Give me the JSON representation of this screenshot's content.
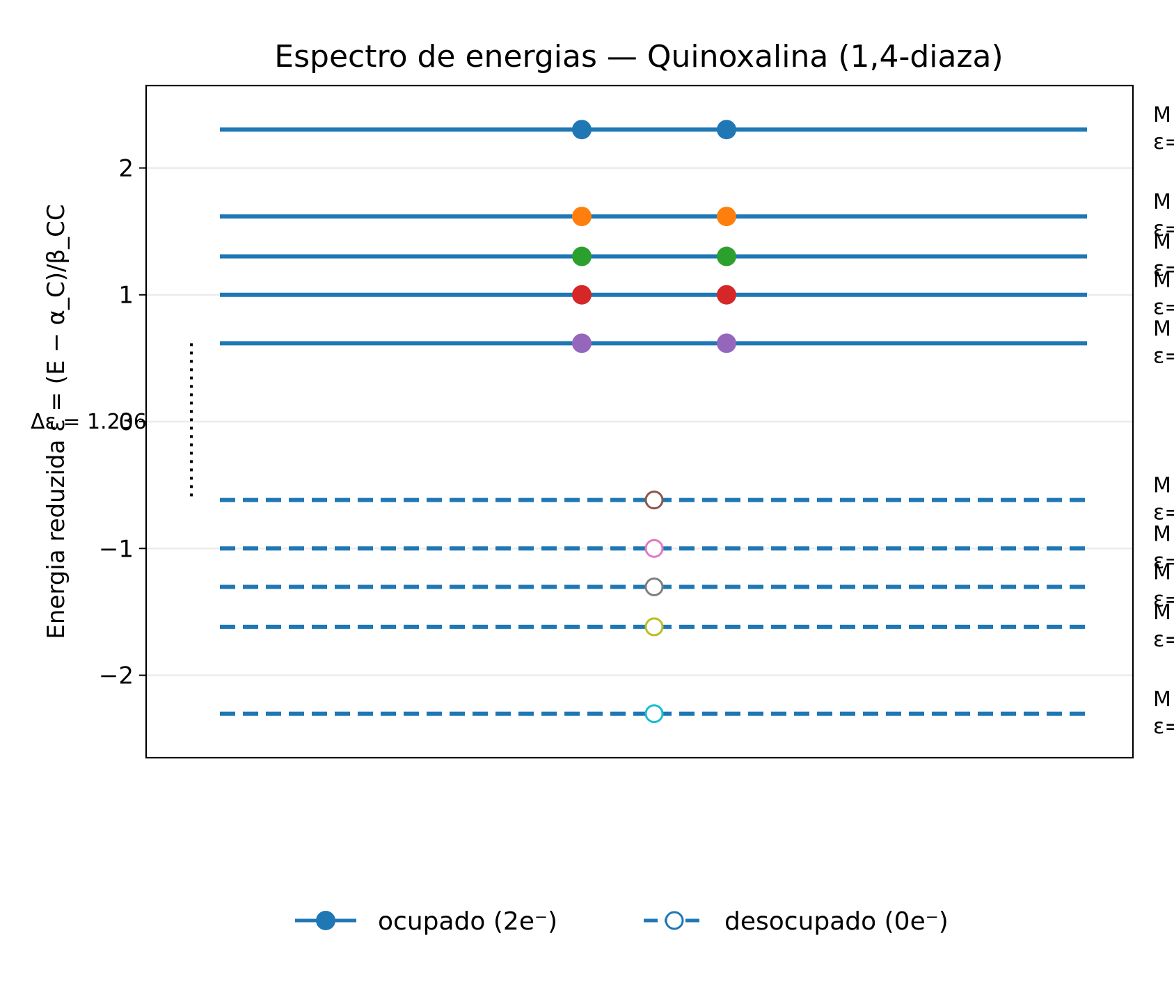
{
  "chart_data": {
    "type": "energy-level diagram",
    "title": "Espectro de energias — Quinoxalina (1,4-diaza)",
    "ylabel": "Energia reduzida ε = (E − α_C)/β_CC",
    "xlabel": "",
    "ylim": [
      -2.65,
      2.65
    ],
    "yticks": [
      2,
      1,
      0,
      -1,
      -2
    ],
    "ytick_labels": [
      "2",
      "1",
      "0",
      "−1",
      "−2"
    ],
    "grid": "horizontal",
    "legend_position": "bottom-center",
    "legend": [
      {
        "label": "ocupado (2e⁻)",
        "style": "solid-filled"
      },
      {
        "label": "desocupado (0e⁻)",
        "style": "dashed-hollow"
      }
    ],
    "line_color": "#1f77b4",
    "occupied_levels": [
      {
        "energy": 2.303,
        "electrons": 2,
        "color": "#1f77b4",
        "label_lines": [
          "M",
          "ε="
        ]
      },
      {
        "energy": 1.618,
        "electrons": 2,
        "color": "#ff7f0e",
        "label_lines": [
          "M",
          "ε="
        ]
      },
      {
        "energy": 1.303,
        "electrons": 2,
        "color": "#2ca02c",
        "label_lines": [
          "M",
          "ε="
        ]
      },
      {
        "energy": 1.0,
        "electrons": 2,
        "color": "#d62728",
        "label_lines": [
          "M",
          "ε="
        ]
      },
      {
        "energy": 0.618,
        "electrons": 2,
        "color": "#9467bd",
        "label_lines": [
          "M",
          "ε="
        ]
      }
    ],
    "unoccupied_levels": [
      {
        "energy": -0.618,
        "electrons": 0,
        "color": "#8c564b",
        "label_lines": [
          "M",
          "ε="
        ]
      },
      {
        "energy": -1.0,
        "electrons": 0,
        "color": "#e377c2",
        "label_lines": [
          "M",
          "ε="
        ]
      },
      {
        "energy": -1.303,
        "electrons": 0,
        "color": "#7f7f7f",
        "label_lines": [
          "M",
          "ε="
        ]
      },
      {
        "energy": -1.618,
        "electrons": 0,
        "color": "#bcbd22",
        "label_lines": [
          "M",
          "ε="
        ]
      },
      {
        "energy": -2.303,
        "electrons": 0,
        "color": "#17becf",
        "label_lines": [
          "M",
          "ε="
        ]
      }
    ],
    "gap": {
      "from": -0.618,
      "to": 0.618,
      "label": "Δε = 1.236"
    }
  }
}
